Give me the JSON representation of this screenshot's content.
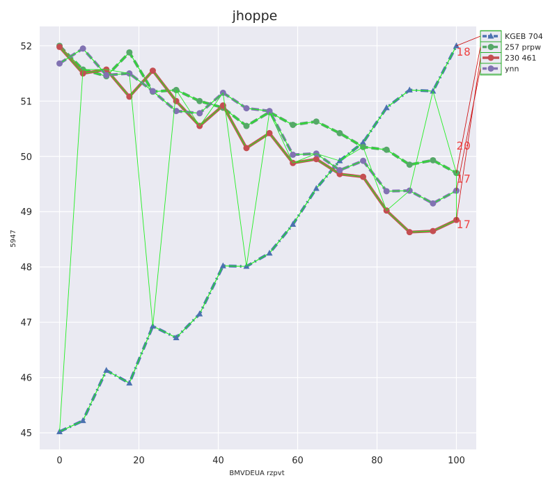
{
  "chart_data": {
    "type": "line",
    "title": "jhoppe",
    "xlabel": "BMVDEUA rzpvt",
    "ylabel": "5947",
    "xlim": [
      -5,
      105
    ],
    "ylim": [
      44.7,
      52.35
    ],
    "x_ticks": [
      0,
      20,
      40,
      60,
      80,
      100
    ],
    "y_ticks": [
      45,
      46,
      47,
      48,
      49,
      50,
      51,
      52
    ],
    "grid": true,
    "legend_position": "top-right",
    "x": [
      0,
      5.9,
      11.8,
      17.6,
      23.5,
      29.4,
      35.3,
      41.2,
      47.1,
      52.9,
      58.8,
      64.7,
      70.6,
      76.5,
      82.4,
      88.2,
      94.1,
      100
    ],
    "series": [
      {
        "name": "KGEB 704",
        "color": "#4c72b0",
        "style": "dashdot",
        "marker": "triangle",
        "values": [
          45.02,
          45.22,
          46.13,
          45.9,
          46.93,
          46.72,
          47.15,
          48.02,
          48.01,
          48.25,
          48.77,
          49.42,
          49.92,
          50.25,
          50.88,
          51.2,
          51.18,
          52.0
        ]
      },
      {
        "name": "257 prpw",
        "color": "#55a868",
        "style": "dashed",
        "marker": "circle",
        "values": [
          52.0,
          51.57,
          51.45,
          51.88,
          51.17,
          51.2,
          51.0,
          50.88,
          50.55,
          50.8,
          50.57,
          50.63,
          50.42,
          50.17,
          50.12,
          49.85,
          49.93,
          49.7
        ]
      },
      {
        "name": "230 461",
        "color": "#c44e52",
        "style": "solid",
        "marker": "circle",
        "values": [
          51.98,
          51.5,
          51.57,
          51.08,
          51.55,
          51.0,
          50.55,
          50.92,
          50.15,
          50.42,
          49.88,
          49.95,
          49.68,
          49.63,
          49.02,
          48.63,
          48.65,
          48.85
        ]
      },
      {
        "name": "ynn",
        "color": "#8172b2",
        "style": "dashed",
        "marker": "circle",
        "values": [
          51.68,
          51.95,
          51.47,
          51.5,
          51.18,
          50.82,
          50.78,
          51.15,
          50.87,
          50.82,
          50.03,
          50.05,
          49.75,
          49.92,
          49.37,
          49.38,
          49.15,
          49.38
        ]
      }
    ],
    "end_labels": [
      {
        "text": "18",
        "series": 0
      },
      {
        "text": "17",
        "series": 1
      },
      {
        "text": "20",
        "series": 3
      },
      {
        "text": "17",
        "series": 2
      }
    ]
  }
}
